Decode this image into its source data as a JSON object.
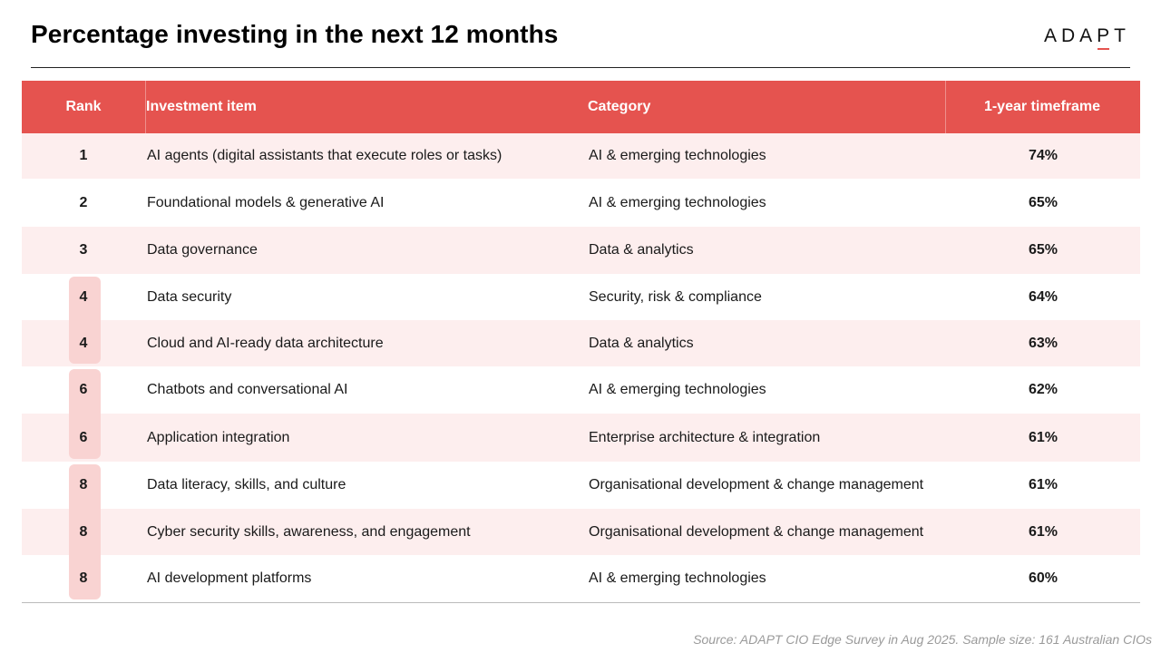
{
  "title": "Percentage investing in the next 12 months",
  "logo": {
    "part1": "ADA",
    "part2": "PT",
    "text": "ADAPT"
  },
  "colors": {
    "header": "#e5534f",
    "alt_row": "#fdeeee",
    "tie_highlight": "#f9d3d2"
  },
  "chart_data": {
    "type": "table",
    "title": "Percentage investing in the next 12 months",
    "columns": [
      "Rank",
      "Investment item",
      "Category",
      "1-year timeframe"
    ],
    "rows": [
      {
        "rank": "1",
        "item": "AI agents (digital assistants that execute roles or tasks)",
        "category": "AI & emerging technologies",
        "value": "74%"
      },
      {
        "rank": "2",
        "item": "Foundational models & generative AI",
        "category": "AI & emerging technologies",
        "value": "65%"
      },
      {
        "rank": "3",
        "item": "Data governance",
        "category": "Data & analytics",
        "value": "65%"
      },
      {
        "rank": "4",
        "item": "Data security",
        "category": "Security, risk & compliance",
        "value": "64%"
      },
      {
        "rank": "4",
        "item": "Cloud and AI-ready data architecture",
        "category": "Data & analytics",
        "value": "63%"
      },
      {
        "rank": "6",
        "item": "Chatbots and conversational AI",
        "category": "AI & emerging technologies",
        "value": "62%"
      },
      {
        "rank": "6",
        "item": "Application integration",
        "category": "Enterprise architecture & integration",
        "value": "61%"
      },
      {
        "rank": "8",
        "item": "Data literacy, skills, and culture",
        "category": "Organisational development & change management",
        "value": "61%"
      },
      {
        "rank": "8",
        "item": "Cyber security skills, awareness, and engagement",
        "category": "Organisational development & change management",
        "value": "61%"
      },
      {
        "rank": "8",
        "item": "AI development platforms",
        "category": "AI & emerging technologies",
        "value": "60%"
      }
    ],
    "tied_groups": [
      [
        3,
        4
      ],
      [
        5,
        6
      ],
      [
        7,
        8,
        9
      ]
    ]
  },
  "source": "Source: ADAPT CIO Edge Survey in Aug 2025. Sample size: 161 Australian CIOs"
}
